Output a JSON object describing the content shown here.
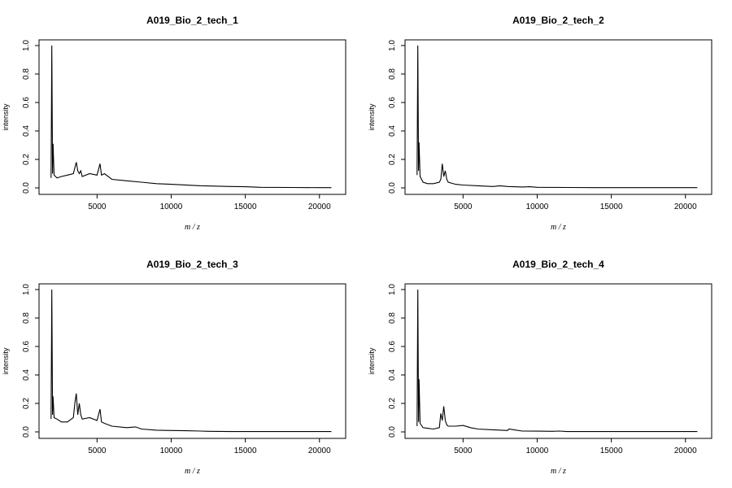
{
  "chart_data": [
    {
      "type": "line",
      "title": "A019_Bio_2_tech_1",
      "xlabel": "m / z",
      "ylabel": "intensity",
      "xlim": [
        1800,
        21000
      ],
      "ylim": [
        0,
        1.0
      ],
      "xticks": [
        "5000",
        "10000",
        "15000",
        "20000"
      ],
      "yticks": [
        "0.0",
        "0.2",
        "0.4",
        "0.6",
        "0.8",
        "1.0"
      ],
      "x": [
        1900,
        1950,
        2000,
        2030,
        2100,
        2300,
        2600,
        3000,
        3400,
        3500,
        3600,
        3700,
        3800,
        3900,
        4000,
        4500,
        5000,
        5200,
        5300,
        5500,
        6000,
        7000,
        8000,
        9000,
        10000,
        12000,
        14000,
        15000,
        16000,
        18000,
        20000,
        20800
      ],
      "values": [
        0.07,
        1.0,
        0.1,
        0.31,
        0.09,
        0.07,
        0.08,
        0.09,
        0.1,
        0.14,
        0.18,
        0.12,
        0.1,
        0.12,
        0.08,
        0.1,
        0.09,
        0.17,
        0.09,
        0.1,
        0.06,
        0.05,
        0.04,
        0.03,
        0.025,
        0.015,
        0.01,
        0.008,
        0.004,
        0.003,
        0.002,
        0.002
      ]
    },
    {
      "type": "line",
      "title": "A019_Bio_2_tech_2",
      "xlabel": "m / z",
      "ylabel": "intensity",
      "xlim": [
        1800,
        21000
      ],
      "ylim": [
        0,
        1.0
      ],
      "xticks": [
        "5000",
        "10000",
        "15000",
        "20000"
      ],
      "yticks": [
        "0.0",
        "0.2",
        "0.4",
        "0.6",
        "0.8",
        "1.0"
      ],
      "x": [
        1900,
        1950,
        2000,
        2030,
        2100,
        2300,
        2600,
        3000,
        3400,
        3500,
        3600,
        3700,
        3800,
        3900,
        4000,
        4500,
        5000,
        6000,
        7000,
        7500,
        8000,
        9000,
        9500,
        10000,
        12000,
        14000,
        16000,
        18000,
        20000,
        20800
      ],
      "values": [
        0.09,
        1.0,
        0.12,
        0.32,
        0.08,
        0.04,
        0.03,
        0.03,
        0.04,
        0.06,
        0.17,
        0.08,
        0.12,
        0.06,
        0.04,
        0.025,
        0.02,
        0.015,
        0.01,
        0.015,
        0.01,
        0.006,
        0.008,
        0.004,
        0.003,
        0.002,
        0.002,
        0.002,
        0.002,
        0.002
      ]
    },
    {
      "type": "line",
      "title": "A019_Bio_2_tech_3",
      "xlabel": "m / z",
      "ylabel": "intensity",
      "xlim": [
        1800,
        21000
      ],
      "ylim": [
        0,
        1.0
      ],
      "xticks": [
        "5000",
        "10000",
        "15000",
        "20000"
      ],
      "yticks": [
        "0.0",
        "0.2",
        "0.4",
        "0.6",
        "0.8",
        "1.0"
      ],
      "x": [
        1900,
        1950,
        2000,
        2030,
        2100,
        2300,
        2600,
        3000,
        3400,
        3500,
        3600,
        3700,
        3800,
        3900,
        4000,
        4500,
        5000,
        5200,
        5300,
        5500,
        6000,
        7000,
        7600,
        8000,
        9000,
        10000,
        11000,
        12000,
        12500,
        14000,
        16000,
        18000,
        20000,
        20800
      ],
      "values": [
        0.09,
        1.0,
        0.12,
        0.25,
        0.1,
        0.09,
        0.07,
        0.07,
        0.1,
        0.2,
        0.27,
        0.12,
        0.2,
        0.12,
        0.09,
        0.1,
        0.08,
        0.16,
        0.07,
        0.06,
        0.04,
        0.03,
        0.035,
        0.02,
        0.012,
        0.01,
        0.008,
        0.006,
        0.004,
        0.002,
        0.002,
        0.002,
        0.002,
        0.002
      ]
    },
    {
      "type": "line",
      "title": "A019_Bio_2_tech_4",
      "xlabel": "m / z",
      "ylabel": "intensity",
      "xlim": [
        1800,
        21000
      ],
      "ylim": [
        0,
        1.0
      ],
      "xticks": [
        "5000",
        "10000",
        "15000",
        "20000"
      ],
      "yticks": [
        "0.0",
        "0.2",
        "0.4",
        "0.6",
        "0.8",
        "1.0"
      ],
      "x": [
        1900,
        1950,
        2000,
        2030,
        2100,
        2300,
        2600,
        3000,
        3400,
        3500,
        3600,
        3700,
        3800,
        3900,
        4000,
        4500,
        5000,
        5500,
        6000,
        7000,
        8000,
        8100,
        9000,
        10000,
        11000,
        11500,
        12000,
        14000,
        16000,
        18000,
        20000,
        20800
      ],
      "values": [
        0.04,
        1.0,
        0.07,
        0.37,
        0.06,
        0.03,
        0.025,
        0.02,
        0.03,
        0.13,
        0.08,
        0.18,
        0.08,
        0.05,
        0.04,
        0.04,
        0.045,
        0.03,
        0.02,
        0.015,
        0.01,
        0.02,
        0.006,
        0.005,
        0.004,
        0.006,
        0.002,
        0.002,
        0.002,
        0.002,
        0.002,
        0.002
      ]
    }
  ]
}
